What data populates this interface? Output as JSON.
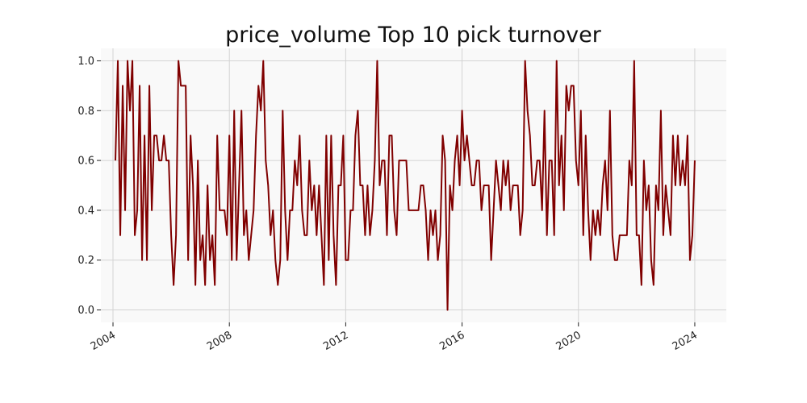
{
  "chart_data": {
    "type": "line",
    "title": "price_volume Top 10 pick turnover",
    "xlabel": "",
    "ylabel": "",
    "x_start": "2004-02",
    "x_end": "2024-03",
    "x_frequency": "monthly",
    "xlim": [
      "2003-08",
      "2025-02"
    ],
    "ylim": [
      -0.05,
      1.05
    ],
    "x_ticks": [
      "2004",
      "2008",
      "2012",
      "2016",
      "2020",
      "2024"
    ],
    "y_ticks": [
      "0.0",
      "0.2",
      "0.4",
      "0.6",
      "0.8",
      "1.0"
    ],
    "grid": true,
    "legend": "none",
    "colors": {
      "line": "#800000",
      "plot_background": "#f9f9f9",
      "grid": "#d3d3d3"
    },
    "series": [
      {
        "values": [
          0.6,
          1.0,
          0.3,
          0.9,
          0.4,
          1.0,
          0.8,
          1.0,
          0.3,
          0.4,
          0.9,
          0.2,
          0.7,
          0.2,
          0.9,
          0.4,
          0.7,
          0.7,
          0.6,
          0.6,
          0.7,
          0.6,
          0.6,
          0.3,
          0.1,
          0.3,
          1.0,
          0.9,
          0.9,
          0.9,
          0.2,
          0.7,
          0.5,
          0.1,
          0.6,
          0.2,
          0.3,
          0.1,
          0.5,
          0.2,
          0.3,
          0.1,
          0.7,
          0.4,
          0.4,
          0.4,
          0.3,
          0.7,
          0.2,
          0.8,
          0.2,
          0.5,
          0.8,
          0.3,
          0.4,
          0.2,
          0.3,
          0.4,
          0.7,
          0.9,
          0.8,
          1.0,
          0.6,
          0.5,
          0.3,
          0.4,
          0.2,
          0.1,
          0.2,
          0.8,
          0.4,
          0.2,
          0.4,
          0.4,
          0.6,
          0.5,
          0.7,
          0.4,
          0.3,
          0.3,
          0.6,
          0.4,
          0.5,
          0.3,
          0.5,
          0.3,
          0.1,
          0.7,
          0.2,
          0.7,
          0.3,
          0.1,
          0.5,
          0.5,
          0.7,
          0.2,
          0.2,
          0.4,
          0.4,
          0.7,
          0.8,
          0.5,
          0.5,
          0.3,
          0.5,
          0.3,
          0.4,
          0.6,
          1.0,
          0.5,
          0.6,
          0.6,
          0.3,
          0.7,
          0.7,
          0.4,
          0.3,
          0.6,
          0.6,
          0.6,
          0.6,
          0.4,
          0.4,
          0.4,
          0.4,
          0.4,
          0.5,
          0.5,
          0.4,
          0.2,
          0.4,
          0.3,
          0.4,
          0.2,
          0.3,
          0.7,
          0.6,
          0.0,
          0.5,
          0.4,
          0.6,
          0.7,
          0.5,
          0.8,
          0.6,
          0.7,
          0.6,
          0.5,
          0.5,
          0.6,
          0.6,
          0.4,
          0.5,
          0.5,
          0.5,
          0.2,
          0.4,
          0.6,
          0.5,
          0.4,
          0.6,
          0.5,
          0.6,
          0.4,
          0.5,
          0.5,
          0.5,
          0.3,
          0.4,
          1.0,
          0.8,
          0.7,
          0.5,
          0.5,
          0.6,
          0.6,
          0.4,
          0.8,
          0.3,
          0.6,
          0.6,
          0.3,
          1.0,
          0.5,
          0.7,
          0.4,
          0.9,
          0.8,
          0.9,
          0.9,
          0.6,
          0.5,
          0.8,
          0.3,
          0.7,
          0.4,
          0.2,
          0.4,
          0.3,
          0.4,
          0.3,
          0.5,
          0.6,
          0.4,
          0.8,
          0.3,
          0.2,
          0.2,
          0.3,
          0.3,
          0.3,
          0.3,
          0.6,
          0.5,
          1.0,
          0.3,
          0.3,
          0.1,
          0.6,
          0.4,
          0.5,
          0.2,
          0.1,
          0.5,
          0.4,
          0.8,
          0.3,
          0.5,
          0.4,
          0.3,
          0.7,
          0.5,
          0.7,
          0.5,
          0.6,
          0.5,
          0.7,
          0.2,
          0.3,
          0.6
        ]
      }
    ]
  }
}
